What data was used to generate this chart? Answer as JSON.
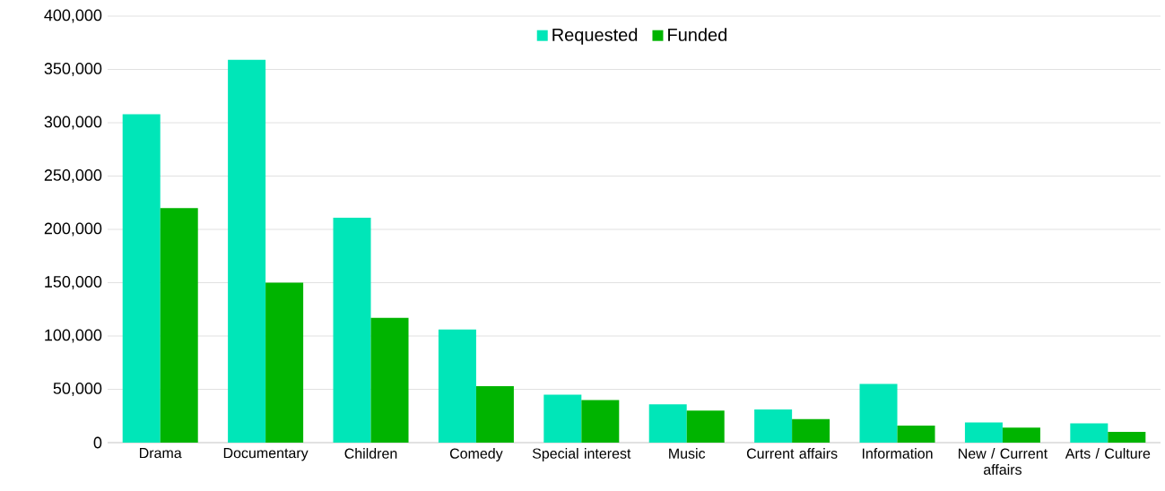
{
  "chart_data": {
    "type": "bar",
    "categories": [
      "Drama",
      "Documentary",
      "Children",
      "Comedy",
      "Special interest",
      "Music",
      "Current affairs",
      "Information",
      "New / Current affairs",
      "Arts / Culture"
    ],
    "series": [
      {
        "name": "Requested",
        "color": "#00e6b8",
        "values": [
          308000,
          359000,
          211000,
          106000,
          45000,
          36000,
          31000,
          55000,
          19000,
          18000
        ]
      },
      {
        "name": "Funded",
        "color": "#00b400",
        "values": [
          220000,
          150000,
          117000,
          53000,
          40000,
          30000,
          22000,
          16000,
          14000,
          10000
        ]
      }
    ],
    "ylim": [
      0,
      400000
    ],
    "yticks": [
      0,
      {
        "value": 50000,
        "label": "50,000"
      },
      {
        "value": 100000,
        "label": "100,000"
      },
      {
        "value": 150000,
        "label": "150,000"
      },
      {
        "value": 200000,
        "label": "200,000"
      },
      {
        "value": 250000,
        "label": "250,000"
      },
      {
        "value": 300000,
        "label": "300,000"
      },
      {
        "value": 350000,
        "label": "350,000"
      },
      {
        "value": 400000,
        "label": "400,000"
      }
    ],
    "grid": "y",
    "legend": "top"
  }
}
